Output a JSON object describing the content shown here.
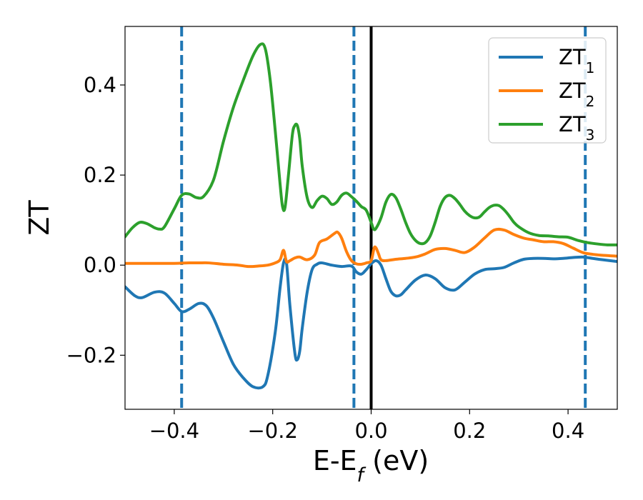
{
  "chart_data": {
    "type": "line",
    "xlabel": "E-E",
    "xlabel_sub": "f",
    "xlabel_unit": " (eV)",
    "ylabel": "ZT",
    "xlim": [
      -0.5,
      0.5
    ],
    "ylim": [
      -0.32,
      0.53
    ],
    "xticks": [
      -0.4,
      -0.2,
      0.0,
      0.2,
      0.4
    ],
    "xtick_labels": [
      "−0.4",
      "−0.2",
      "0.0",
      "0.2",
      "0.4"
    ],
    "yticks": [
      -0.2,
      0.0,
      0.2,
      0.4
    ],
    "ytick_labels": [
      "−0.2",
      "0.0",
      "0.2",
      "0.4"
    ],
    "grid": false,
    "legend_position": "top-right",
    "dashed_vlines": {
      "x": [
        -0.385,
        -0.035,
        0.435
      ],
      "color": "#1f77b4"
    },
    "solid_vline": {
      "x": 0.0,
      "color": "#000000"
    },
    "series": [
      {
        "name": "ZT",
        "subscript": "1",
        "color": "#1f77b4",
        "x": [
          -0.5,
          -0.48,
          -0.465,
          -0.44,
          -0.42,
          -0.4,
          -0.385,
          -0.37,
          -0.35,
          -0.335,
          -0.32,
          -0.3,
          -0.28,
          -0.26,
          -0.24,
          -0.22,
          -0.21,
          -0.195,
          -0.185,
          -0.178,
          -0.172,
          -0.165,
          -0.155,
          -0.15,
          -0.145,
          -0.14,
          -0.13,
          -0.12,
          -0.11,
          -0.1,
          -0.08,
          -0.06,
          -0.04,
          -0.03,
          -0.02,
          -0.01,
          0.0,
          0.01,
          0.02,
          0.03,
          0.04,
          0.05,
          0.06,
          0.07,
          0.09,
          0.11,
          0.13,
          0.15,
          0.17,
          0.19,
          0.21,
          0.23,
          0.25,
          0.27,
          0.29,
          0.31,
          0.33,
          0.35,
          0.37,
          0.39,
          0.41,
          0.43,
          0.45,
          0.47,
          0.5
        ],
        "y": [
          -0.048,
          -0.068,
          -0.072,
          -0.06,
          -0.062,
          -0.085,
          -0.103,
          -0.098,
          -0.085,
          -0.09,
          -0.118,
          -0.17,
          -0.22,
          -0.25,
          -0.27,
          -0.27,
          -0.245,
          -0.15,
          -0.05,
          0.005,
          0.005,
          -0.09,
          -0.195,
          -0.21,
          -0.19,
          -0.14,
          -0.06,
          -0.01,
          0.002,
          0.005,
          0.0,
          -0.003,
          -0.002,
          -0.015,
          -0.02,
          -0.01,
          0.003,
          0.01,
          0.0,
          -0.03,
          -0.058,
          -0.068,
          -0.066,
          -0.055,
          -0.033,
          -0.022,
          -0.03,
          -0.05,
          -0.055,
          -0.038,
          -0.02,
          -0.01,
          -0.008,
          -0.005,
          0.005,
          0.013,
          0.015,
          0.015,
          0.014,
          0.015,
          0.017,
          0.018,
          0.015,
          0.012,
          0.008
        ]
      },
      {
        "name": "ZT",
        "subscript": "2",
        "color": "#ff7f0e",
        "x": [
          -0.5,
          -0.45,
          -0.4,
          -0.37,
          -0.35,
          -0.33,
          -0.3,
          -0.27,
          -0.25,
          -0.23,
          -0.21,
          -0.195,
          -0.185,
          -0.178,
          -0.172,
          -0.165,
          -0.155,
          -0.145,
          -0.13,
          -0.115,
          -0.105,
          -0.09,
          -0.075,
          -0.068,
          -0.06,
          -0.05,
          -0.04,
          -0.03,
          -0.02,
          -0.01,
          0.0,
          0.006,
          0.01,
          0.015,
          0.02,
          0.03,
          0.05,
          0.07,
          0.09,
          0.11,
          0.13,
          0.15,
          0.17,
          0.19,
          0.21,
          0.23,
          0.25,
          0.27,
          0.29,
          0.31,
          0.33,
          0.35,
          0.37,
          0.39,
          0.41,
          0.43,
          0.45,
          0.47,
          0.5
        ],
        "y": [
          0.004,
          0.004,
          0.004,
          0.005,
          0.005,
          0.005,
          0.002,
          0.0,
          -0.003,
          -0.002,
          0.0,
          0.005,
          0.012,
          0.033,
          0.008,
          0.01,
          0.016,
          0.018,
          0.012,
          0.022,
          0.05,
          0.058,
          0.07,
          0.073,
          0.06,
          0.03,
          0.01,
          0.003,
          0.002,
          0.005,
          0.01,
          0.038,
          0.038,
          0.025,
          0.012,
          0.01,
          0.013,
          0.015,
          0.018,
          0.025,
          0.035,
          0.037,
          0.033,
          0.028,
          0.04,
          0.06,
          0.078,
          0.078,
          0.068,
          0.06,
          0.056,
          0.052,
          0.052,
          0.048,
          0.038,
          0.028,
          0.024,
          0.022,
          0.02
        ]
      },
      {
        "name": "ZT",
        "subscript": "3",
        "color": "#2ca02c",
        "x": [
          -0.5,
          -0.485,
          -0.47,
          -0.455,
          -0.44,
          -0.43,
          -0.42,
          -0.4,
          -0.385,
          -0.37,
          -0.355,
          -0.34,
          -0.32,
          -0.3,
          -0.28,
          -0.26,
          -0.24,
          -0.225,
          -0.215,
          -0.205,
          -0.195,
          -0.185,
          -0.18,
          -0.175,
          -0.168,
          -0.16,
          -0.155,
          -0.15,
          -0.145,
          -0.14,
          -0.13,
          -0.12,
          -0.11,
          -0.1,
          -0.09,
          -0.08,
          -0.07,
          -0.06,
          -0.05,
          -0.04,
          -0.03,
          -0.02,
          -0.01,
          0.0,
          0.005,
          0.01,
          0.02,
          0.03,
          0.04,
          0.05,
          0.06,
          0.07,
          0.08,
          0.09,
          0.1,
          0.11,
          0.12,
          0.13,
          0.14,
          0.15,
          0.16,
          0.17,
          0.18,
          0.19,
          0.2,
          0.21,
          0.22,
          0.23,
          0.24,
          0.25,
          0.26,
          0.27,
          0.28,
          0.29,
          0.3,
          0.32,
          0.34,
          0.36,
          0.38,
          0.4,
          0.42,
          0.44,
          0.46,
          0.48,
          0.5
        ],
        "y": [
          0.063,
          0.083,
          0.095,
          0.092,
          0.083,
          0.08,
          0.085,
          0.125,
          0.155,
          0.158,
          0.15,
          0.153,
          0.19,
          0.275,
          0.35,
          0.41,
          0.465,
          0.49,
          0.48,
          0.41,
          0.3,
          0.18,
          0.13,
          0.128,
          0.2,
          0.29,
          0.31,
          0.31,
          0.28,
          0.22,
          0.15,
          0.128,
          0.143,
          0.153,
          0.148,
          0.135,
          0.14,
          0.155,
          0.16,
          0.152,
          0.142,
          0.13,
          0.122,
          0.095,
          0.08,
          0.082,
          0.105,
          0.14,
          0.157,
          0.15,
          0.125,
          0.095,
          0.07,
          0.055,
          0.048,
          0.05,
          0.065,
          0.095,
          0.13,
          0.15,
          0.155,
          0.148,
          0.135,
          0.12,
          0.11,
          0.105,
          0.107,
          0.118,
          0.128,
          0.133,
          0.132,
          0.123,
          0.11,
          0.095,
          0.085,
          0.072,
          0.066,
          0.065,
          0.063,
          0.062,
          0.055,
          0.05,
          0.047,
          0.045,
          0.045
        ]
      }
    ]
  }
}
